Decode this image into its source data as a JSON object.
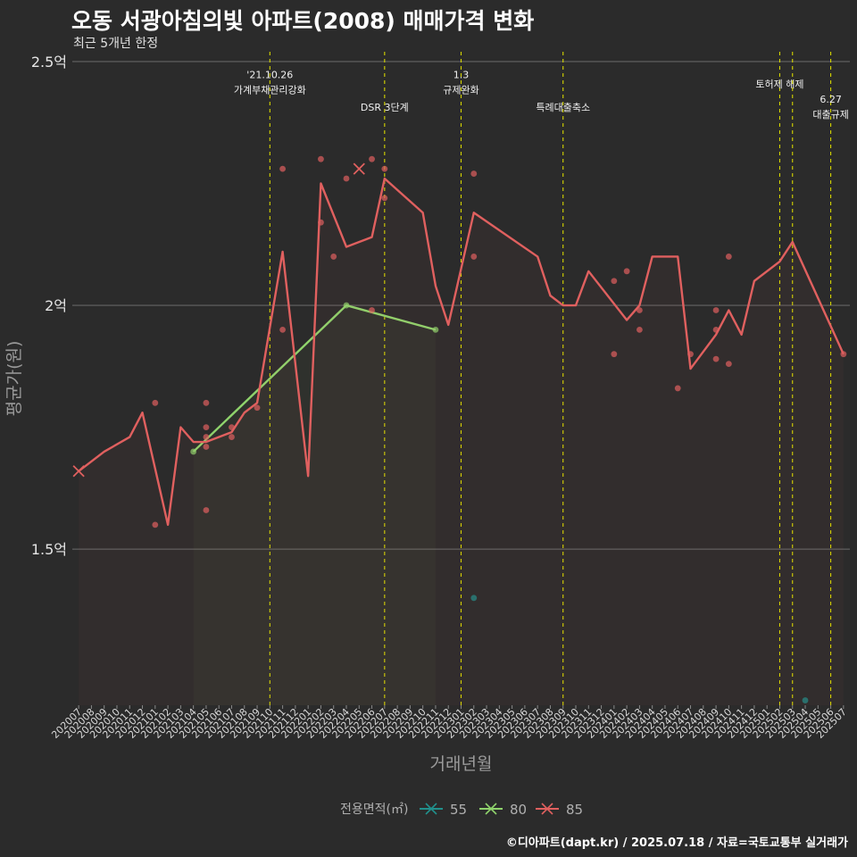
{
  "title": "오동 서광아침의빛 아파트(2008) 매매가격 변화",
  "subtitle": "최근 5개년 한정",
  "caption": "©디아파트(dapt.kr) / 2025.07.18 / 자료=국토교통부 실거래가",
  "chart_data": {
    "type": "line",
    "xlabel": "거래년월",
    "ylabel": "평균가(원)",
    "x_categories": [
      "202007",
      "202008",
      "202009",
      "202010",
      "202011",
      "202012",
      "202101",
      "202102",
      "202103",
      "202104",
      "202105",
      "202106",
      "202107",
      "202108",
      "202109",
      "202110",
      "202111",
      "202112",
      "202201",
      "202202",
      "202203",
      "202204",
      "202205",
      "202206",
      "202207",
      "202208",
      "202209",
      "202210",
      "202211",
      "202212",
      "202301",
      "202302",
      "202303",
      "202304",
      "202305",
      "202306",
      "202307",
      "202308",
      "202309",
      "202310",
      "202311",
      "202312",
      "202401",
      "202402",
      "202403",
      "202404",
      "202405",
      "202406",
      "202407",
      "202408",
      "202409",
      "202410",
      "202411",
      "202412",
      "202501",
      "202502",
      "202503",
      "202504",
      "202505",
      "202506",
      "202507"
    ],
    "y_ticks": [
      {
        "value": 1.5,
        "label": "1.5억"
      },
      {
        "value": 2.0,
        "label": "2억"
      },
      {
        "value": 2.5,
        "label": "2.5억"
      }
    ],
    "ylim": [
      1.18,
      2.52
    ],
    "y_unit": "억",
    "grid": true,
    "legend": {
      "title": "전용면적(㎡)",
      "position": "bottom",
      "items": [
        {
          "name": "55",
          "color": "#21908c"
        },
        {
          "name": "80",
          "color": "#8fd36c"
        },
        {
          "name": "85",
          "color": "#e0605f"
        }
      ]
    },
    "series": [
      {
        "name": "55",
        "color": "#21908c",
        "line": [],
        "points": [
          [
            "202302",
            1.4
          ],
          [
            "202504",
            1.19
          ]
        ]
      },
      {
        "name": "80",
        "color": "#8fd36c",
        "line": [
          [
            "202104",
            1.7
          ],
          [
            "202204",
            2.0
          ],
          [
            "202211",
            1.95
          ]
        ],
        "points": [
          [
            "202104",
            1.7
          ],
          [
            "202204",
            2.0
          ],
          [
            "202211",
            1.95
          ]
        ]
      },
      {
        "name": "85",
        "color": "#e0605f",
        "line": [
          [
            "202007",
            1.66
          ],
          [
            "202009",
            1.7
          ],
          [
            "202011",
            1.73
          ],
          [
            "202012",
            1.78
          ],
          [
            "202102",
            1.55
          ],
          [
            "202103",
            1.75
          ],
          [
            "202104",
            1.72
          ],
          [
            "202105",
            1.72
          ],
          [
            "202107",
            1.74
          ],
          [
            "202108",
            1.78
          ],
          [
            "202109",
            1.8
          ],
          [
            "202111",
            2.11
          ],
          [
            "202201",
            1.65
          ],
          [
            "202202",
            2.25
          ],
          [
            "202204",
            2.12
          ],
          [
            "202206",
            2.14
          ],
          [
            "202207",
            2.26
          ],
          [
            "202210",
            2.19
          ],
          [
            "202211",
            2.04
          ],
          [
            "202212",
            1.96
          ],
          [
            "202302",
            2.19
          ],
          [
            "202307",
            2.1
          ],
          [
            "202308",
            2.02
          ],
          [
            "202309",
            2.0
          ],
          [
            "202310",
            2.0
          ],
          [
            "202311",
            2.07
          ],
          [
            "202402",
            1.97
          ],
          [
            "202403",
            2.0
          ],
          [
            "202404",
            2.1
          ],
          [
            "202406",
            2.1
          ],
          [
            "202407",
            1.87
          ],
          [
            "202409",
            1.94
          ],
          [
            "202410",
            1.99
          ],
          [
            "202411",
            1.94
          ],
          [
            "202412",
            2.05
          ],
          [
            "202502",
            2.09
          ],
          [
            "202503",
            2.13
          ],
          [
            "202507",
            1.9
          ]
        ],
        "points": [
          [
            "202101",
            1.8
          ],
          [
            "202101",
            1.55
          ],
          [
            "202105",
            1.8
          ],
          [
            "202105",
            1.75
          ],
          [
            "202105",
            1.73
          ],
          [
            "202105",
            1.71
          ],
          [
            "202105",
            1.58
          ],
          [
            "202107",
            1.73
          ],
          [
            "202107",
            1.75
          ],
          [
            "202109",
            1.79
          ],
          [
            "202111",
            2.28
          ],
          [
            "202111",
            1.95
          ],
          [
            "202202",
            2.3
          ],
          [
            "202202",
            2.17
          ],
          [
            "202203",
            2.1
          ],
          [
            "202204",
            2.26
          ],
          [
            "202206",
            2.3
          ],
          [
            "202206",
            1.99
          ],
          [
            "202207",
            2.28
          ],
          [
            "202207",
            2.22
          ],
          [
            "202302",
            2.27
          ],
          [
            "202302",
            2.1
          ],
          [
            "202401",
            2.05
          ],
          [
            "202401",
            1.9
          ],
          [
            "202402",
            2.07
          ],
          [
            "202403",
            1.99
          ],
          [
            "202403",
            1.95
          ],
          [
            "202406",
            1.83
          ],
          [
            "202407",
            1.9
          ],
          [
            "202409",
            1.99
          ],
          [
            "202409",
            1.95
          ],
          [
            "202409",
            1.89
          ],
          [
            "202410",
            2.1
          ],
          [
            "202410",
            1.88
          ],
          [
            "202507",
            1.9
          ]
        ],
        "cross_points": [
          [
            "202007",
            1.66
          ],
          [
            "202205",
            2.28
          ]
        ]
      }
    ],
    "events": [
      {
        "x": "202110",
        "label_lines": [
          "'21.10.26",
          "가계부채관리강화"
        ],
        "label_y": 2.466
      },
      {
        "x": "202207",
        "label_lines": [
          "DSR 3단계"
        ],
        "label_y": 2.399
      },
      {
        "x": "202301",
        "label_lines": [
          "1.3",
          "규제완화"
        ],
        "label_y": 2.466
      },
      {
        "x": "202309",
        "label_lines": [
          "특례대출축소"
        ],
        "label_y": 2.399
      },
      {
        "x": "202502",
        "label_lines": [
          "토허제 해제"
        ],
        "label_y": 2.447
      },
      {
        "x": "202503",
        "label_lines": [],
        "label_y": 2.447
      },
      {
        "x": "202506",
        "label_lines": [
          "6.27",
          "대출규제"
        ],
        "label_y": 2.416
      }
    ]
  }
}
